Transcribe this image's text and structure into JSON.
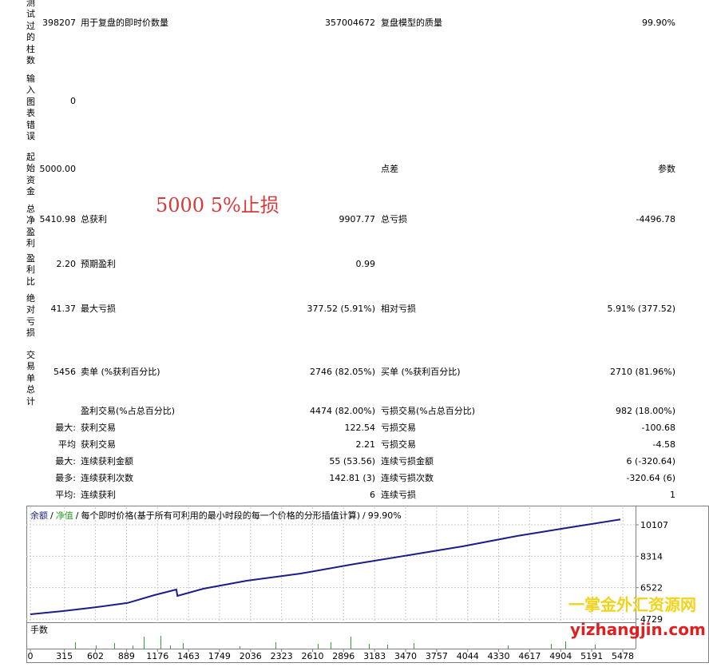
{
  "report": {
    "rows": [
      {
        "label": "测试过的柱数",
        "value": "398207",
        "name1": "用于复盘的即时价数量",
        "value1": "357004672",
        "name2": "复盘模型的质量",
        "value2": "99.90%"
      },
      {
        "label": "输入图表错误",
        "value": "0"
      },
      {
        "label": "起始资金",
        "value": "5000.00",
        "name2": "点差",
        "value2": "参数"
      },
      {
        "label": "总净盈利",
        "value": "5410.98",
        "name1": "总获利",
        "value1": "9907.77",
        "name2": "总亏损",
        "value2": "-4496.78"
      },
      {
        "label": "盈利比",
        "value": "2.20",
        "name1": "预期盈利",
        "value1": "0.99"
      },
      {
        "label": "绝对亏损",
        "value": "41.37",
        "name1": "最大亏损",
        "value1": "377.52 (5.91%)",
        "name2": "相对亏损",
        "value2": "5.91% (377.52)"
      },
      {
        "label": "交易单总计",
        "value": "5456",
        "name1": "卖单 (%获利百分比)",
        "value1": "2746 (82.05%)",
        "name2": "买单 (%获利百分比)",
        "value2": "2710 (81.96%)"
      },
      {
        "name1": "盈利交易(%占总百分比)",
        "value1": "4474 (82.00%)",
        "name2": "亏损交易(%占总百分比)",
        "value2": "982 (18.00%)"
      },
      {
        "prefix": "最大:",
        "name1": "获利交易",
        "value1": "122.54",
        "name2": "亏损交易",
        "value2": "-100.68"
      },
      {
        "prefix": "平均",
        "name1": "获利交易",
        "value1": "2.21",
        "name2": "亏损交易",
        "value2": "-4.58"
      },
      {
        "prefix": "最大:",
        "name1": "连续获利金额",
        "value1": "55 (53.56)",
        "name2": "连续亏损金额",
        "value2": "6 (-320.64)"
      },
      {
        "prefix": "最多:",
        "name1": "连续获利次数",
        "value1": "142.81 (3)",
        "name2": "连续亏损次数",
        "value2": "-320.64 (6)"
      },
      {
        "prefix": "平均:",
        "name1": "连续获利",
        "value1": "6",
        "name2": "连续亏损",
        "value2": "1"
      }
    ],
    "annotation": "5000  5%止损"
  },
  "watermark": {
    "title": "一掌金外汇资源网",
    "url": "yizhangjin.com"
  },
  "chart_data": {
    "type": "line",
    "separator": "/",
    "equity_label": "净值",
    "subtitle": "每个即时价格(基于所有可利用的最小时段的每一个价格的分形插值计算)",
    "quality": "99.90%",
    "lots_label": "手数",
    "x": [
      0,
      300,
      600,
      900,
      1150,
      1350,
      1360,
      1600,
      2000,
      2500,
      3000,
      3500,
      4000,
      4500,
      5000,
      5456
    ],
    "series": [
      {
        "name": "余额",
        "color": "#1c1c8a",
        "values": [
          5000,
          5185,
          5400,
          5650,
          6100,
          6415,
          6050,
          6460,
          6918,
          7328,
          7875,
          8377,
          8880,
          9470,
          9970,
          10411
        ]
      }
    ],
    "xlim": [
      0,
      5596
    ],
    "ylim": [
      4592,
      11110
    ],
    "xticks": [
      0,
      315,
      602,
      889,
      1176,
      1463,
      1749,
      2036,
      2323,
      2610,
      2896,
      3183,
      3470,
      3757,
      4044,
      4330,
      4617,
      4904,
      5191,
      5478
    ],
    "yticks": [
      4729,
      6522,
      8314,
      10107
    ],
    "grid": true
  }
}
